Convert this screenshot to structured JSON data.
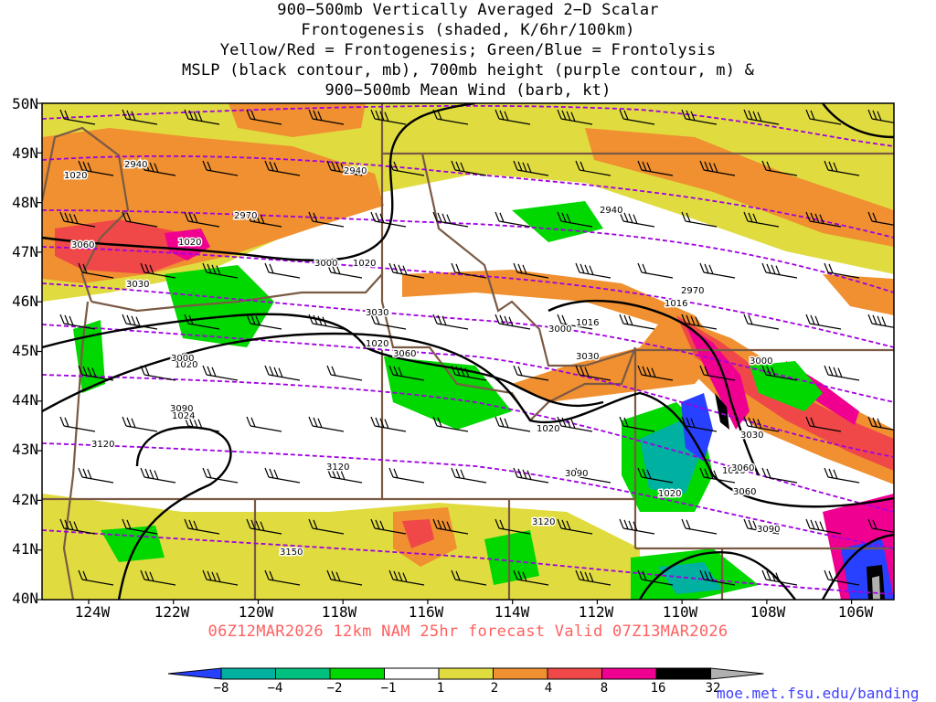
{
  "title": {
    "lines": [
      "900−500mb Vertically Averaged 2−D Scalar",
      "Frontogenesis (shaded, K/6hr/100km)",
      "Yellow/Red = Frontogenesis;  Green/Blue = Frontolysis",
      "MSLP (black contour, mb), 700mb height (purple contour, m) &",
      "900−500mb Mean Wind (barb, kt)"
    ]
  },
  "map": {
    "lat_labels": [
      "50N",
      "49N",
      "48N",
      "47N",
      "46N",
      "45N",
      "44N",
      "43N",
      "42N",
      "41N",
      "40N"
    ],
    "lon_labels": [
      "124W",
      "122W",
      "120W",
      "118W",
      "116W",
      "114W",
      "112W",
      "110W",
      "108W",
      "106W"
    ],
    "lat_range": [
      40,
      50
    ],
    "lon_range": [
      -125.1,
      -105.0
    ],
    "mslp_labels": [
      "1020",
      "1020",
      "1020",
      "1020",
      "1016",
      "1016",
      "1020",
      "1024",
      "1020",
      "1016",
      "1020"
    ],
    "height_labels": [
      "2940",
      "2940",
      "2970",
      "3060",
      "3030",
      "3000",
      "3030",
      "3000",
      "2940",
      "2970",
      "3060",
      "3000",
      "3030",
      "3000",
      "3030",
      "3060",
      "3090",
      "3120",
      "3120",
      "3090",
      "3120",
      "3060",
      "3090",
      "3150"
    ],
    "colors": {
      "mslp_contour": "#000000",
      "height_contour": "#a000e0",
      "state_border": "#7a5a44",
      "frontolysis_weak": "#00d800",
      "frontolysis_mod": "#00c080",
      "frontolysis_strong": "#00a8a8",
      "frontolysis_max": "#2840ff",
      "frontogenesis_weak": "#e0dc40",
      "frontogenesis_mod": "#f09030",
      "frontogenesis_strong": "#f04848",
      "frontogenesis_max": "#f00090"
    }
  },
  "subtitle": "06Z12MAR2026 12km NAM 25hr forecast Valid 07Z13MAR2026",
  "colorbar": {
    "labels": [
      "−8",
      "−4",
      "−2",
      "−1",
      "1",
      "2",
      "4",
      "8",
      "16",
      "32"
    ],
    "colors": [
      "#2840ff",
      "#00b0a0",
      "#00c080",
      "#00d800",
      "#ffffff",
      "#e0dc40",
      "#f09030",
      "#f04848",
      "#f00090",
      "#000000",
      "#b0b0b0"
    ]
  },
  "credit": "moe.met.fsu.edu/banding"
}
